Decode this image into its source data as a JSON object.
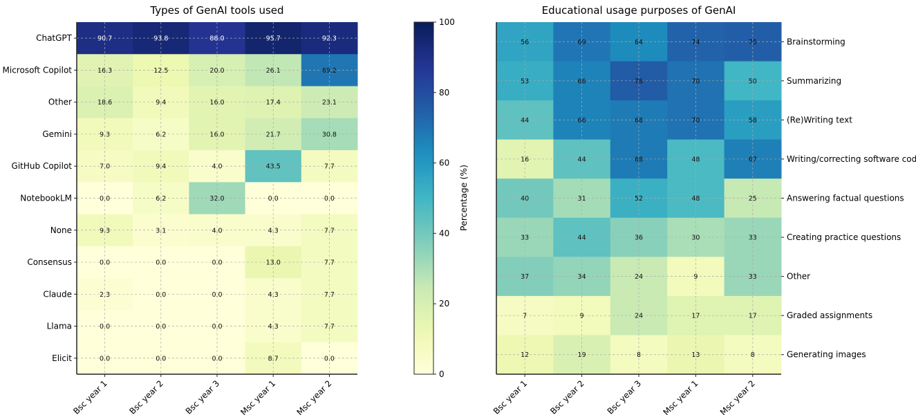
{
  "chart_data": [
    {
      "type": "heatmap",
      "title": "Types of GenAI tools used",
      "x": [
        "Bsc year 1",
        "Bsc year 2",
        "Bsc year 3",
        "Msc year 1",
        "Msc year 2"
      ],
      "y": [
        "ChatGPT",
        "Microsoft Copilot",
        "Other",
        "Gemini",
        "GitHub Copilot",
        "NotebookLM",
        "None",
        "Consensus",
        "Claude",
        "Llama",
        "Elicit"
      ],
      "values": [
        [
          "90.7",
          "93.8",
          "88.0",
          "95.7",
          "92.3"
        ],
        [
          "16.3",
          "12.5",
          "20.0",
          "26.1",
          "69.2"
        ],
        [
          "18.6",
          "9.4",
          "16.0",
          "17.4",
          "23.1"
        ],
        [
          "9.3",
          "6.2",
          "16.0",
          "21.7",
          "30.8"
        ],
        [
          "7.0",
          "9.4",
          "4.0",
          "43.5",
          "7.7"
        ],
        [
          "0.0",
          "6.2",
          "32.0",
          "0.0",
          "0.0"
        ],
        [
          "9.3",
          "3.1",
          "4.0",
          "4.3",
          "7.7"
        ],
        [
          "0.0",
          "0.0",
          "0.0",
          "13.0",
          "7.7"
        ],
        [
          "2.3",
          "0.0",
          "0.0",
          "4.3",
          "7.7"
        ],
        [
          "0.0",
          "0.0",
          "0.0",
          "4.3",
          "7.7"
        ],
        [
          "0.0",
          "0.0",
          "0.0",
          "8.7",
          "0.0"
        ]
      ],
      "ylabel_position": "left",
      "colormap": "YlGnBu",
      "grid": true
    },
    {
      "type": "heatmap",
      "title": "Educational usage purposes of GenAI",
      "x": [
        "Bsc year 1",
        "Bsc year 2",
        "Bsc year 3",
        "Msc year 1",
        "Msc year 2"
      ],
      "y": [
        "Brainstorming",
        "Summarizing",
        "(Re)Writing text",
        "Writing/correcting software code",
        "Answering factual questions",
        "Creating practice questions",
        "Other",
        "Graded assignments",
        "Generating images"
      ],
      "values": [
        [
          "56",
          "69",
          "64",
          "74",
          "75"
        ],
        [
          "53",
          "66",
          "76",
          "70",
          "50"
        ],
        [
          "44",
          "66",
          "68",
          "70",
          "58"
        ],
        [
          "16",
          "44",
          "68",
          "48",
          "67"
        ],
        [
          "40",
          "31",
          "52",
          "48",
          "25"
        ],
        [
          "33",
          "44",
          "36",
          "30",
          "33"
        ],
        [
          "37",
          "34",
          "24",
          "9",
          "33"
        ],
        [
          "7",
          "9",
          "24",
          "17",
          "17"
        ],
        [
          "12",
          "19",
          "8",
          "13",
          "8"
        ]
      ],
      "ylabel_position": "right",
      "colormap": "YlGnBu",
      "grid": true
    }
  ],
  "colorbar": {
    "label": "Percentage (%)",
    "range": [
      0,
      100
    ],
    "ticks": [
      "0",
      "20",
      "40",
      "60",
      "80",
      "100"
    ]
  }
}
